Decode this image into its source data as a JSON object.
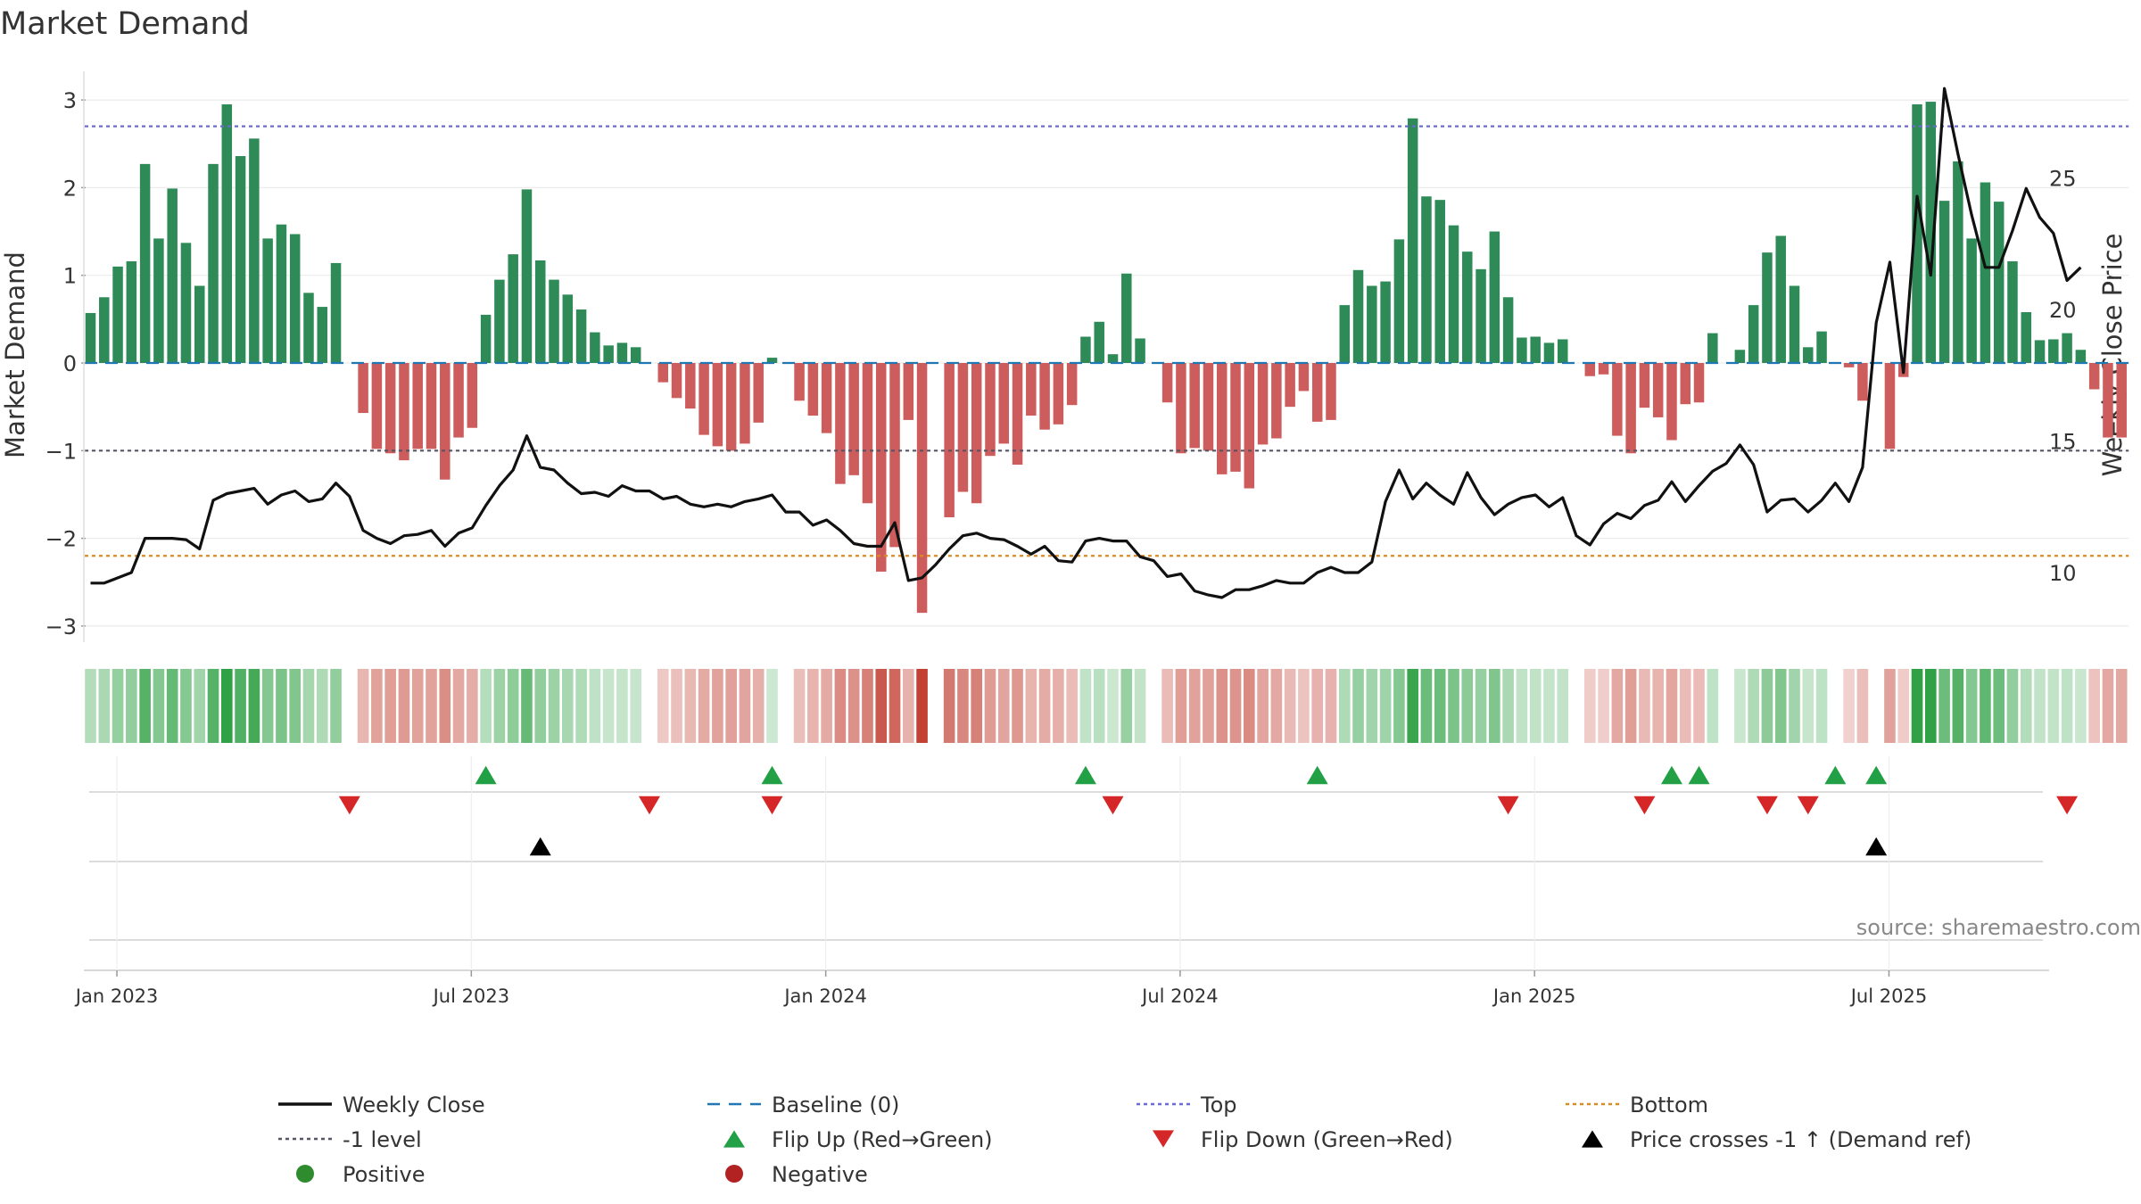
{
  "chart_data": {
    "type": "bar",
    "title": "Market Demand",
    "ylabel_left": "Market Demand",
    "ylabel_right": "Weekly Close Price",
    "ylim_left": [
      -3.2,
      3.3
    ],
    "ylim_right": [
      8,
      29
    ],
    "yticks_left": [
      "3",
      "2",
      "1",
      "0",
      "−1",
      "−2",
      "−3"
    ],
    "ytick_values_left": [
      3,
      2,
      1,
      0,
      -1,
      -2,
      -3
    ],
    "yticks_right": [
      "25",
      "20",
      "15",
      "10"
    ],
    "ytick_values_right": [
      25,
      20,
      15,
      10
    ],
    "xticks": [
      "Jan 2023",
      "Jul 2023",
      "Jan 2024",
      "Jul 2024",
      "Jan 2025",
      "Jul 2025"
    ],
    "xtick_week_index": [
      2,
      28,
      54,
      80,
      106,
      132
    ],
    "top_level": 2.7,
    "bottom_level": -2.2,
    "minus1_level": -1,
    "baseline": 0,
    "colors": {
      "positive": "#2e8b57",
      "negative": "#cd5c5c",
      "price": "#111111",
      "baseline": "#1f77b4",
      "top": "#6a6ad0",
      "bottom": "#e08a1e",
      "minus1": "#555566",
      "flip_up": "#22a046",
      "flip_down": "#d62728",
      "cross": "#000000",
      "strip_green": "#2ea043",
      "strip_red": "#c0392b"
    },
    "demand": [
      0.57,
      0.75,
      1.1,
      1.16,
      2.27,
      1.42,
      1.99,
      1.37,
      0.88,
      2.27,
      2.95,
      2.36,
      2.56,
      1.42,
      1.58,
      1.47,
      0.8,
      0.64,
      1.14,
      0,
      -0.57,
      -0.98,
      -1.03,
      -1.11,
      -0.98,
      -0.98,
      -1.33,
      -0.85,
      -0.74,
      0.55,
      0.95,
      1.24,
      1.98,
      1.17,
      0.95,
      0.78,
      0.61,
      0.35,
      0.2,
      0.23,
      0.18,
      0,
      -0.22,
      -0.4,
      -0.52,
      -0.82,
      -0.95,
      -1.0,
      -0.92,
      -0.68,
      0.06,
      0,
      -0.43,
      -0.6,
      -0.8,
      -1.38,
      -1.28,
      -1.6,
      -2.38,
      -2.1,
      -0.65,
      -2.85,
      0,
      -1.76,
      -1.47,
      -1.6,
      -1.06,
      -0.92,
      -1.16,
      -0.6,
      -0.76,
      -0.7,
      -0.48,
      0.3,
      0.47,
      0.1,
      1.02,
      0.28,
      0,
      -0.45,
      -1.03,
      -0.97,
      -1.0,
      -1.27,
      -1.24,
      -1.43,
      -0.93,
      -0.86,
      -0.5,
      -0.32,
      -0.67,
      -0.65,
      0.66,
      1.06,
      0.88,
      0.93,
      1.41,
      2.79,
      1.9,
      1.86,
      1.57,
      1.27,
      1.07,
      1.5,
      0.75,
      0.29,
      0.3,
      0.23,
      0.27,
      0,
      -0.15,
      -0.13,
      -0.83,
      -1.03,
      -0.51,
      -0.62,
      -0.88,
      -0.47,
      -0.45,
      0.34,
      0,
      0.15,
      0.66,
      1.26,
      1.45,
      0.88,
      0.18,
      0.36,
      0,
      -0.05,
      -0.43,
      0,
      -0.98,
      -0.16,
      2.95,
      2.98,
      1.85,
      2.3,
      1.42,
      2.06,
      1.84,
      1.16,
      0.58,
      0.26,
      0.27,
      0.34,
      0.15,
      -0.3,
      -0.85,
      -0.85
    ],
    "price": [
      9.6,
      9.6,
      9.8,
      10.0,
      11.3,
      11.3,
      11.3,
      11.25,
      10.9,
      12.75,
      13.0,
      13.1,
      13.2,
      12.6,
      12.95,
      13.1,
      12.7,
      12.8,
      13.4,
      12.9,
      11.6,
      11.3,
      11.1,
      11.4,
      11.45,
      11.6,
      11.0,
      11.5,
      11.7,
      12.55,
      13.3,
      13.9,
      15.2,
      14.0,
      13.9,
      13.4,
      13.0,
      13.05,
      12.9,
      13.3,
      13.1,
      13.1,
      12.8,
      12.9,
      12.6,
      12.5,
      12.6,
      12.5,
      12.7,
      12.8,
      12.95,
      12.3,
      12.3,
      11.8,
      12.0,
      11.6,
      11.1,
      11.0,
      11.0,
      11.9,
      9.7,
      9.8,
      10.3,
      10.9,
      11.4,
      11.5,
      11.3,
      11.25,
      11.0,
      10.7,
      11.0,
      10.45,
      10.4,
      11.2,
      11.3,
      11.2,
      11.2,
      10.6,
      10.45,
      9.85,
      9.95,
      9.3,
      9.15,
      9.05,
      9.35,
      9.35,
      9.5,
      9.7,
      9.6,
      9.6,
      10.0,
      10.2,
      10.0,
      10.0,
      10.4,
      12.7,
      13.9,
      12.8,
      13.4,
      12.95,
      12.6,
      13.8,
      12.85,
      12.2,
      12.6,
      12.85,
      12.95,
      12.5,
      12.85,
      11.4,
      11.05,
      11.85,
      12.25,
      12.05,
      12.55,
      12.75,
      13.45,
      12.7,
      13.3,
      13.85,
      14.15,
      14.85,
      14.1,
      12.3,
      12.75,
      12.8,
      12.3,
      12.75,
      13.4,
      12.7,
      14.0,
      19.5,
      21.8,
      17.6,
      24.3,
      21.3,
      28.4,
      25.9,
      23.6,
      21.6,
      21.6,
      23.0,
      24.6,
      23.5,
      22.9,
      21.1,
      21.6
    ],
    "flip_up_weeks": [
      29,
      50,
      73,
      90,
      116,
      118,
      128,
      131
    ],
    "flip_down_weeks": [
      19,
      41,
      50,
      75,
      104,
      114,
      123,
      126,
      145
    ],
    "price_cross_up_weeks": [
      33,
      131
    ],
    "legend": [
      {
        "label": "Weekly Close",
        "symbol": "line",
        "color": "#111111"
      },
      {
        "label": "Baseline (0)",
        "symbol": "dash",
        "color": "#1f77b4"
      },
      {
        "label": "Top",
        "symbol": "dot",
        "color": "#6a6ad0"
      },
      {
        "label": "Bottom",
        "symbol": "dot",
        "color": "#e08a1e"
      },
      {
        "label": "-1 level",
        "symbol": "dot",
        "color": "#555566"
      },
      {
        "label": "Flip Up (Red→Green)",
        "symbol": "tri-up",
        "color": "#22a046"
      },
      {
        "label": "Flip Down (Green→Red)",
        "symbol": "tri-down",
        "color": "#d62728"
      },
      {
        "label": "Price crosses -1 ↑ (Demand ref)",
        "symbol": "tri-up",
        "color": "#000000"
      },
      {
        "label": "Positive",
        "symbol": "circle",
        "color": "#2e8b2e"
      },
      {
        "label": "Negative",
        "symbol": "circle",
        "color": "#b22222"
      }
    ],
    "source": "source: sharemaestro.com"
  }
}
